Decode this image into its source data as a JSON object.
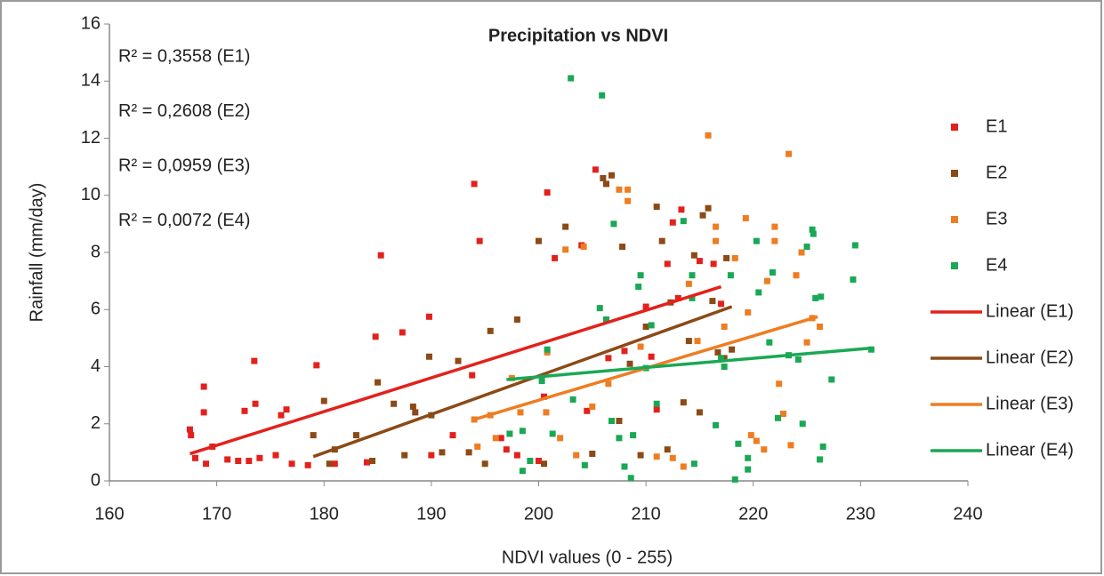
{
  "chart_data": {
    "type": "scatter",
    "title": "Precipitation vs NDVI",
    "x_label": "NDVI values (0 - 255)",
    "y_label": "Rainfall (mm/day)",
    "annotations": [
      "R² = 0,3558 (E1)",
      "R² = 0,2608 (E2)",
      "R² = 0,0959 (E3)",
      "R² = 0,0072 (E4)"
    ],
    "xlim": [
      160,
      240
    ],
    "xticks": [
      160,
      170,
      180,
      190,
      200,
      210,
      220,
      230,
      240
    ],
    "ylim": [
      0,
      16
    ],
    "yticks": [
      0,
      2,
      4,
      6,
      8,
      10,
      12,
      14,
      16
    ],
    "grid": false,
    "legend": "right",
    "series": [
      {
        "name": "E1",
        "color": "#e3211c",
        "x": [
          167.5,
          167.6,
          168,
          168.8,
          168.8,
          169,
          169.6,
          171,
          172,
          172.6,
          173,
          173.6,
          173.5,
          174,
          175.5,
          176,
          176.5,
          177,
          178.5,
          179.3,
          181,
          184,
          184.8,
          185.3,
          187.3,
          189.8,
          190,
          192,
          193.8,
          194,
          194.5,
          196.5,
          197,
          200.5,
          200.8,
          201.5,
          204,
          204.5,
          205.3,
          206.5,
          208,
          210,
          210.5,
          211,
          212,
          212.5,
          213.3,
          215,
          216.3,
          217,
          213,
          198,
          200
        ],
        "values": [
          1.8,
          1.6,
          0.8,
          3.3,
          2.4,
          0.6,
          1.2,
          0.75,
          0.7,
          2.45,
          0.7,
          2.7,
          4.2,
          0.8,
          0.9,
          2.3,
          2.5,
          0.6,
          0.55,
          4.05,
          0.6,
          0.65,
          5.05,
          7.9,
          5.2,
          5.75,
          0.9,
          1.6,
          3.7,
          10.4,
          8.4,
          1.5,
          1.1,
          2.95,
          10.1,
          7.8,
          8.25,
          2.45,
          10.9,
          4.3,
          4.55,
          6.1,
          4.35,
          2.5,
          7.6,
          9.05,
          9.5,
          7.7,
          7.6,
          6.2,
          6.4,
          0.9,
          0.7
        ]
      },
      {
        "name": "E2",
        "color": "#8b4a16",
        "x": [
          179,
          180,
          180.5,
          181,
          183,
          184.5,
          185,
          186.5,
          187.5,
          188.3,
          188.5,
          189.8,
          190,
          191,
          192.5,
          193.5,
          195,
          195.5,
          198,
          200,
          200.5,
          202.5,
          205,
          206,
          206.3,
          206.8,
          207.5,
          207.8,
          208.5,
          209.5,
          211,
          211.5,
          212,
          212.3,
          213.5,
          214.5,
          215.3,
          215.8,
          215,
          216.2,
          216.7,
          217.3,
          217.5,
          218,
          210,
          214
        ],
        "values": [
          1.6,
          2.8,
          0.6,
          1.1,
          1.6,
          0.7,
          3.45,
          2.7,
          0.9,
          2.6,
          2.4,
          4.35,
          2.3,
          1.0,
          4.2,
          1.0,
          0.6,
          5.25,
          5.65,
          8.4,
          0.6,
          8.9,
          0.95,
          10.6,
          10.4,
          10.7,
          2.1,
          8.2,
          4.1,
          0.9,
          9.6,
          8.4,
          1.1,
          6.25,
          2.75,
          7.9,
          9.3,
          9.55,
          2.4,
          6.3,
          4.5,
          4.3,
          7.8,
          4.6,
          5.4,
          4.9
        ]
      },
      {
        "name": "E3",
        "color": "#ee7d22",
        "x": [
          194,
          194.3,
          195.5,
          196,
          197.5,
          198.3,
          200.8,
          200.7,
          202,
          202.5,
          203.5,
          204.2,
          205,
          206.5,
          207.5,
          208.3,
          208.3,
          209.5,
          211,
          212.5,
          213.5,
          214,
          214.8,
          215.8,
          216.5,
          216.5,
          217.3,
          218.3,
          219.3,
          219.5,
          220.3,
          221.3,
          222,
          222,
          222.4,
          222.8,
          223.3,
          223.5,
          224,
          224.5,
          225,
          225.5,
          226.2,
          219.8,
          221
        ],
        "values": [
          2.15,
          1.2,
          2.3,
          1.5,
          3.6,
          2.4,
          4.5,
          2.4,
          1.5,
          8.1,
          0.9,
          8.2,
          2.6,
          3.4,
          10.2,
          10.2,
          9.8,
          4.7,
          0.85,
          0.8,
          0.5,
          6.9,
          4.9,
          12.1,
          8.4,
          8.9,
          5.4,
          7.8,
          9.2,
          5.9,
          1.4,
          7.0,
          8.9,
          8.4,
          3.4,
          2.35,
          11.45,
          1.25,
          7.2,
          8.0,
          4.85,
          5.7,
          5.4,
          1.6,
          1.1
        ]
      },
      {
        "name": "E4",
        "color": "#1aa854",
        "x": [
          197.3,
          198.5,
          198.5,
          199.2,
          200.3,
          200.8,
          201.3,
          203,
          203.2,
          204.3,
          205.7,
          205.9,
          206.3,
          206.8,
          207,
          207.5,
          208,
          208.6,
          208.8,
          209.3,
          209.5,
          210,
          210.5,
          211,
          213.5,
          214.3,
          214.3,
          214.5,
          216.5,
          217,
          217.3,
          217.9,
          218.3,
          218.6,
          219.5,
          220.3,
          220.5,
          221.5,
          221.8,
          222.3,
          223.3,
          224.2,
          224.6,
          225,
          225.5,
          225.6,
          225.8,
          226.3,
          226.5,
          226.2,
          227.3,
          229.3,
          229.5,
          231,
          219.5
        ],
        "values": [
          1.65,
          1.75,
          0.35,
          0.7,
          3.5,
          4.6,
          1.65,
          14.1,
          2.85,
          0.55,
          6.05,
          13.5,
          5.65,
          2.1,
          9.0,
          1.5,
          0.5,
          0.1,
          1.6,
          6.8,
          7.2,
          3.95,
          5.45,
          2.7,
          9.1,
          7.2,
          6.4,
          0.6,
          1.95,
          4.3,
          4.0,
          7.2,
          0.05,
          1.3,
          0.8,
          8.4,
          6.6,
          4.85,
          7.3,
          2.2,
          4.4,
          4.25,
          2.0,
          8.2,
          8.8,
          8.65,
          6.4,
          6.45,
          1.2,
          0.75,
          3.55,
          7.05,
          8.25,
          4.6,
          0.4
        ]
      }
    ],
    "trendlines": [
      {
        "name": "Linear (E1)",
        "color": "#e3211c",
        "x": [
          167.5,
          217
        ],
        "values": [
          0.95,
          6.8
        ]
      },
      {
        "name": "Linear (E2)",
        "color": "#8b4a16",
        "x": [
          179,
          218
        ],
        "values": [
          0.85,
          6.1
        ]
      },
      {
        "name": "Linear (E3)",
        "color": "#ee7d22",
        "x": [
          194,
          226
        ],
        "values": [
          2.15,
          5.75
        ]
      },
      {
        "name": "Linear (E4)",
        "color": "#1aa854",
        "x": [
          197,
          231
        ],
        "values": [
          3.55,
          4.65
        ]
      }
    ]
  }
}
